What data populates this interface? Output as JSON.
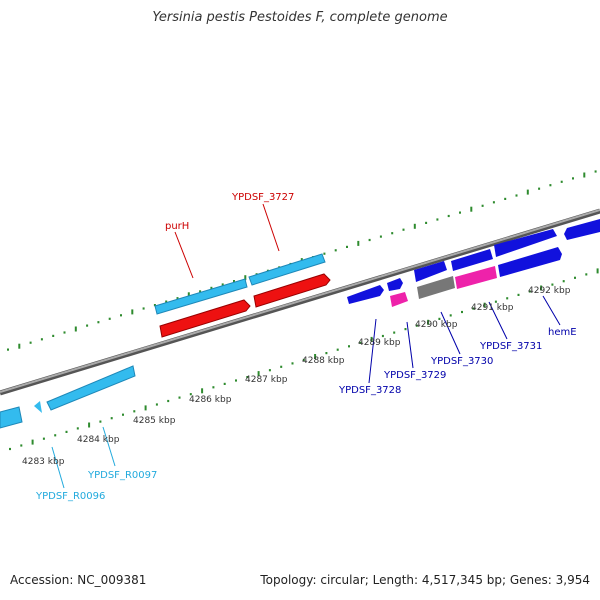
{
  "title": "Yersinia pestis Pestoides F, complete genome",
  "footer": {
    "accession": "Accession: NC_009381",
    "summary": "Topology: circular; Length: 4,517,345 bp; Genes: 3,954"
  },
  "colors": {
    "backbone": "#7f7f7f",
    "tick": "#2e8b2e",
    "gene_cyan": "#33bbee",
    "gene_red": "#ee1111",
    "gene_blue": "#1111dd",
    "gene_pink": "#ee22aa",
    "gene_gray": "#777777",
    "label_red": "#cc0000",
    "label_blue": "#0000aa",
    "label_cyan": "#22aadd"
  },
  "scale_labels": [
    {
      "name": "kbp-4283",
      "text": "4283 kbp"
    },
    {
      "name": "kbp-4284",
      "text": "4284 kbp"
    },
    {
      "name": "kbp-4285",
      "text": "4285 kbp"
    },
    {
      "name": "kbp-4286",
      "text": "4286 kbp"
    },
    {
      "name": "kbp-4287",
      "text": "4287 kbp"
    },
    {
      "name": "kbp-4288",
      "text": "4288 kbp"
    },
    {
      "name": "kbp-4289",
      "text": "4289 kbp"
    },
    {
      "name": "kbp-4290",
      "text": "4290 kbp"
    },
    {
      "name": "kbp-4291",
      "text": "4291 kbp"
    },
    {
      "name": "kbp-4292",
      "text": "4292 kbp"
    }
  ],
  "gene_labels": [
    {
      "name": "gene-label-purH",
      "text": "purH",
      "color": "#cc0000"
    },
    {
      "name": "gene-label-YPDSF_3727",
      "text": "YPDSF_3727",
      "color": "#cc0000"
    },
    {
      "name": "gene-label-YPDSF_3728",
      "text": "YPDSF_3728",
      "color": "#0000aa"
    },
    {
      "name": "gene-label-YPDSF_3729",
      "text": "YPDSF_3729",
      "color": "#0000aa"
    },
    {
      "name": "gene-label-YPDSF_3730",
      "text": "YPDSF_3730",
      "color": "#0000aa"
    },
    {
      "name": "gene-label-YPDSF_3731",
      "text": "YPDSF_3731",
      "color": "#0000aa"
    },
    {
      "name": "gene-label-hemE",
      "text": "hemE",
      "color": "#0000aa"
    },
    {
      "name": "gene-label-YPDSF_R0097",
      "text": "YPDSF_R0097",
      "color": "#22aadd"
    },
    {
      "name": "gene-label-YPDSF_R0096",
      "text": "YPDSF_R0096",
      "color": "#22aadd"
    }
  ]
}
